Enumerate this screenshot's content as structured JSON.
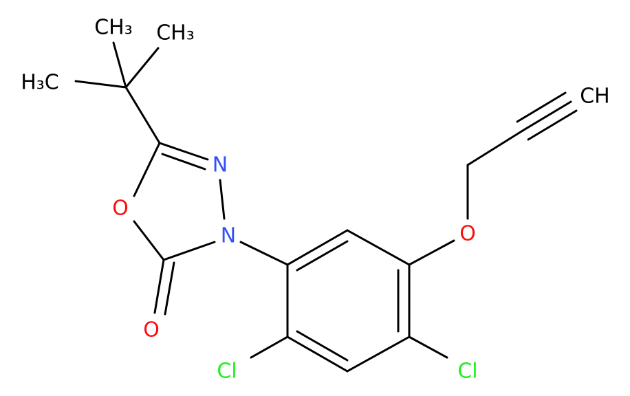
{
  "atoms": [
    {
      "label": "CH₃",
      "color": "#000000"
    },
    {
      "label": "CH₃",
      "color": "#000000"
    },
    {
      "label": "H₃C",
      "color": "#000000"
    },
    {
      "label": "CH",
      "color": "#000000"
    },
    {
      "label": "N",
      "color": "#3050F8"
    },
    {
      "label": "O",
      "color": "#FF0D0D"
    },
    {
      "label": "N",
      "color": "#3050F8"
    },
    {
      "label": "O",
      "color": "#FF0D0D"
    },
    {
      "label": "O",
      "color": "#FF0D0D"
    },
    {
      "label": "Cl",
      "color": "#1FF01F"
    },
    {
      "label": "Cl",
      "color": "#1FF01F"
    }
  ]
}
